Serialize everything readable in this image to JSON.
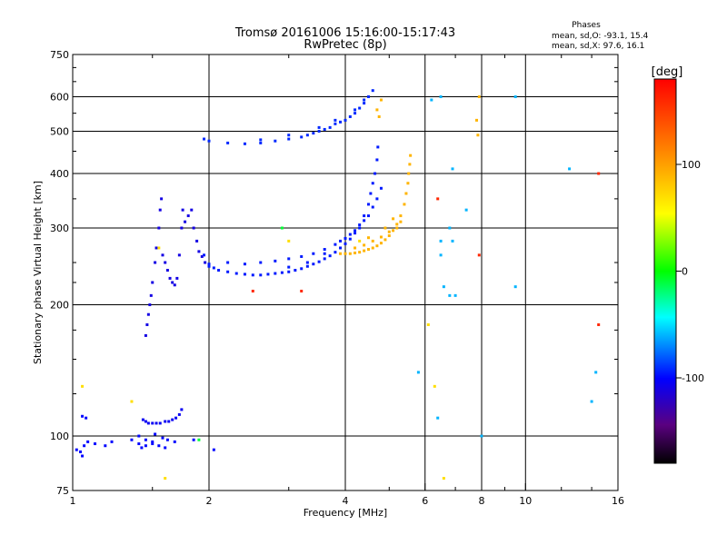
{
  "chart_data": {
    "type": "scatter",
    "title": "Tromsø 20161006 15:16:00-15:17:43",
    "subtitle": "RwPretec (8p)",
    "stats_title": "Phases",
    "stats_line1": "mean, sd,O:  -93.1, 15.4",
    "stats_line2": "mean, sd,X:   97.6, 16.1",
    "xlabel": "Frequency [MHz]",
    "ylabel": "Stationary phase Virtual Height [km]",
    "xscale": "log",
    "yscale": "log",
    "xlim": [
      1,
      16
    ],
    "ylim": [
      75,
      750
    ],
    "xticks": [
      1,
      2,
      4,
      6,
      8,
      10,
      16
    ],
    "yticks": [
      75,
      100,
      200,
      300,
      400,
      500,
      600,
      750
    ],
    "xgrid": [
      2,
      4,
      6,
      8,
      10
    ],
    "ygrid": [
      100,
      200,
      300,
      400,
      500,
      600
    ],
    "colorbar": {
      "label": "[deg]",
      "range": [
        -180,
        180
      ],
      "ticks": [
        100,
        0,
        -100
      ]
    },
    "series": [
      {
        "color_deg": -100,
        "points": [
          [
            1.02,
            93
          ],
          [
            1.04,
            92
          ],
          [
            1.05,
            90
          ],
          [
            1.06,
            95
          ],
          [
            1.08,
            97
          ],
          [
            1.12,
            96
          ],
          [
            1.18,
            95
          ],
          [
            1.22,
            97
          ],
          [
            1.35,
            98
          ],
          [
            1.4,
            96
          ],
          [
            1.42,
            94
          ],
          [
            1.45,
            95
          ],
          [
            1.5,
            96
          ],
          [
            1.55,
            95
          ],
          [
            1.6,
            94
          ],
          [
            1.05,
            111
          ],
          [
            1.07,
            110
          ],
          [
            1.4,
            100
          ],
          [
            1.45,
            98
          ],
          [
            1.5,
            97
          ],
          [
            1.52,
            101
          ],
          [
            1.58,
            99
          ],
          [
            1.62,
            98
          ],
          [
            1.68,
            97
          ],
          [
            1.85,
            98
          ],
          [
            2.05,
            93
          ]
        ]
      },
      {
        "color_deg": -105,
        "points": [
          [
            1.43,
            109
          ],
          [
            1.45,
            108
          ],
          [
            1.47,
            107
          ],
          [
            1.5,
            107
          ],
          [
            1.53,
            107
          ],
          [
            1.56,
            107
          ],
          [
            1.6,
            108
          ],
          [
            1.63,
            108
          ],
          [
            1.66,
            109
          ],
          [
            1.69,
            110
          ],
          [
            1.72,
            112
          ],
          [
            1.74,
            115
          ]
        ]
      },
      {
        "color_deg": -110,
        "points": [
          [
            1.45,
            170
          ],
          [
            1.46,
            180
          ],
          [
            1.47,
            190
          ],
          [
            1.48,
            200
          ],
          [
            1.49,
            210
          ],
          [
            1.5,
            225
          ],
          [
            1.52,
            250
          ],
          [
            1.53,
            270
          ],
          [
            1.55,
            300
          ],
          [
            1.56,
            330
          ],
          [
            1.57,
            350
          ],
          [
            1.58,
            260
          ],
          [
            1.6,
            250
          ],
          [
            1.62,
            240
          ],
          [
            1.64,
            230
          ],
          [
            1.66,
            225
          ],
          [
            1.68,
            222
          ],
          [
            1.7,
            230
          ],
          [
            1.72,
            260
          ],
          [
            1.74,
            300
          ],
          [
            1.75,
            330
          ],
          [
            1.77,
            310
          ],
          [
            1.8,
            320
          ],
          [
            1.83,
            330
          ],
          [
            1.85,
            300
          ],
          [
            1.88,
            280
          ],
          [
            1.9,
            265
          ],
          [
            1.93,
            258
          ],
          [
            1.96,
            250
          ]
        ]
      },
      {
        "color_deg": -95,
        "points": [
          [
            1.95,
            260
          ],
          [
            2.0,
            248
          ],
          [
            2.05,
            243
          ],
          [
            2.1,
            240
          ],
          [
            2.2,
            238
          ],
          [
            2.3,
            236
          ],
          [
            2.4,
            235
          ],
          [
            2.5,
            234
          ],
          [
            2.6,
            234
          ],
          [
            2.7,
            235
          ],
          [
            2.8,
            236
          ],
          [
            2.9,
            237
          ],
          [
            3.0,
            238
          ],
          [
            3.1,
            240
          ],
          [
            3.2,
            242
          ],
          [
            3.3,
            245
          ],
          [
            3.4,
            248
          ],
          [
            3.5,
            251
          ],
          [
            3.6,
            255
          ],
          [
            3.7,
            259
          ],
          [
            3.8,
            264
          ],
          [
            3.9,
            270
          ],
          [
            4.0,
            276
          ],
          [
            4.1,
            283
          ],
          [
            4.2,
            292
          ],
          [
            4.3,
            305
          ],
          [
            4.4,
            320
          ],
          [
            4.5,
            340
          ],
          [
            4.55,
            360
          ],
          [
            4.6,
            380
          ],
          [
            4.65,
            400
          ],
          [
            4.7,
            430
          ],
          [
            4.72,
            460
          ],
          [
            2.0,
            245
          ],
          [
            2.2,
            250
          ],
          [
            2.4,
            248
          ],
          [
            2.6,
            250
          ],
          [
            2.8,
            252
          ],
          [
            3.0,
            255
          ],
          [
            3.2,
            258
          ],
          [
            3.4,
            262
          ],
          [
            3.6,
            268
          ],
          [
            3.8,
            275
          ],
          [
            4.0,
            284
          ],
          [
            4.2,
            296
          ],
          [
            4.4,
            312
          ],
          [
            4.6,
            335
          ],
          [
            4.7,
            350
          ],
          [
            4.8,
            370
          ],
          [
            3.0,
            244
          ],
          [
            3.3,
            250
          ],
          [
            3.6,
            262
          ],
          [
            3.9,
            280
          ],
          [
            4.1,
            290
          ],
          [
            4.3,
            300
          ],
          [
            4.5,
            320
          ]
        ]
      },
      {
        "color_deg": -92,
        "points": [
          [
            1.95,
            480
          ],
          [
            2.0,
            475
          ],
          [
            2.2,
            470
          ],
          [
            2.4,
            468
          ],
          [
            2.6,
            470
          ],
          [
            2.8,
            475
          ],
          [
            3.0,
            480
          ],
          [
            3.2,
            485
          ],
          [
            3.3,
            490
          ],
          [
            3.4,
            495
          ],
          [
            3.5,
            500
          ],
          [
            3.6,
            505
          ],
          [
            3.7,
            510
          ],
          [
            3.8,
            520
          ],
          [
            3.9,
            525
          ],
          [
            4.0,
            530
          ],
          [
            4.1,
            540
          ],
          [
            4.2,
            550
          ],
          [
            4.3,
            565
          ],
          [
            4.4,
            580
          ],
          [
            4.5,
            600
          ],
          [
            4.6,
            620
          ],
          [
            3.5,
            510
          ],
          [
            3.8,
            530
          ],
          [
            4.2,
            560
          ],
          [
            4.4,
            590
          ],
          [
            2.6,
            478
          ],
          [
            3.0,
            490
          ]
        ]
      },
      {
        "color_deg": 90,
        "points": [
          [
            3.9,
            262
          ],
          [
            4.0,
            262
          ],
          [
            4.1,
            262
          ],
          [
            4.2,
            263
          ],
          [
            4.3,
            264
          ],
          [
            4.4,
            266
          ],
          [
            4.5,
            268
          ],
          [
            4.6,
            270
          ],
          [
            4.7,
            273
          ],
          [
            4.8,
            277
          ],
          [
            4.9,
            282
          ],
          [
            5.0,
            288
          ],
          [
            5.1,
            296
          ],
          [
            5.2,
            306
          ],
          [
            5.3,
            320
          ],
          [
            5.4,
            340
          ],
          [
            5.45,
            360
          ],
          [
            5.5,
            380
          ],
          [
            5.52,
            400
          ],
          [
            5.55,
            420
          ],
          [
            5.57,
            440
          ],
          [
            4.2,
            270
          ],
          [
            4.4,
            274
          ],
          [
            4.6,
            280
          ],
          [
            4.8,
            286
          ],
          [
            5.0,
            294
          ],
          [
            5.2,
            300
          ],
          [
            5.3,
            310
          ],
          [
            4.5,
            285
          ],
          [
            4.9,
            300
          ],
          [
            5.1,
            315
          ],
          [
            4.7,
            560
          ],
          [
            4.75,
            540
          ],
          [
            4.8,
            590
          ],
          [
            7.8,
            530
          ],
          [
            7.85,
            490
          ],
          [
            7.9,
            600
          ]
        ]
      },
      {
        "color_deg": 70,
        "points": [
          [
            1.05,
            130
          ],
          [
            1.35,
            120
          ],
          [
            1.55,
            270
          ],
          [
            1.6,
            80
          ],
          [
            2.9,
            300
          ],
          [
            3.0,
            280
          ],
          [
            4.3,
            280
          ],
          [
            6.1,
            180
          ],
          [
            6.3,
            130
          ],
          [
            6.6,
            80
          ]
        ]
      },
      {
        "color_deg": -10,
        "points": [
          [
            1.9,
            98
          ],
          [
            2.9,
            300
          ]
        ]
      },
      {
        "color_deg": 160,
        "points": [
          [
            2.5,
            215
          ],
          [
            3.2,
            215
          ],
          [
            6.4,
            350
          ],
          [
            7.9,
            260
          ],
          [
            14.5,
            180
          ],
          [
            14.5,
            400
          ]
        ]
      },
      {
        "color_deg": -60,
        "points": [
          [
            6.2,
            590
          ],
          [
            6.5,
            600
          ],
          [
            6.6,
            220
          ],
          [
            6.8,
            300
          ],
          [
            6.9,
            410
          ],
          [
            7.4,
            330
          ],
          [
            8.0,
            100
          ],
          [
            9.5,
            600
          ],
          [
            9.5,
            220
          ],
          [
            12.5,
            410
          ],
          [
            14,
            120
          ],
          [
            14.3,
            140
          ],
          [
            5.8,
            140
          ],
          [
            6.4,
            110
          ],
          [
            6.5,
            280
          ],
          [
            6.5,
            260
          ],
          [
            6.8,
            210
          ],
          [
            6.9,
            280
          ],
          [
            7.0,
            210
          ]
        ]
      }
    ]
  }
}
